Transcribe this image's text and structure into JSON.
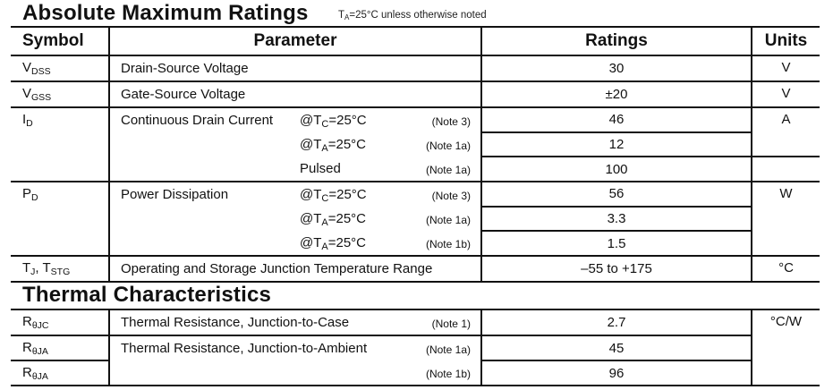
{
  "absolute_maximum_ratings": {
    "title": "Absolute Maximum Ratings",
    "condition": {
      "t": "T",
      "sub": "A",
      "rest": "=25°C unless otherwise noted"
    },
    "headers": {
      "symbol": "Symbol",
      "parameter": "Parameter",
      "ratings": "Ratings",
      "units": "Units"
    },
    "symbols": [
      {
        "parts": [
          {
            "t": "V"
          },
          {
            "sub": "DSS"
          }
        ],
        "rows": 1
      },
      {
        "parts": [
          {
            "t": "V"
          },
          {
            "sub": "GSS"
          }
        ],
        "rows": 1
      },
      {
        "parts": [
          {
            "t": "I"
          },
          {
            "sub": "D"
          }
        ],
        "rows": 3
      },
      {
        "parts": [
          {
            "t": "P"
          },
          {
            "sub": "D"
          }
        ],
        "rows": 3
      },
      {
        "parts": [
          {
            "t": "T"
          },
          {
            "sub": "J"
          },
          {
            "t": ", T"
          },
          {
            "sub": "STG"
          }
        ],
        "rows": 1
      }
    ],
    "parameters": [
      {
        "name": "Drain-Source Voltage",
        "lines": [
          {}
        ]
      },
      {
        "name": "Gate-Source Voltage",
        "lines": [
          {}
        ]
      },
      {
        "name": "Continuous Drain Current",
        "lines": [
          {
            "cond": [
              {
                "t": "@T"
              },
              {
                "sub": "C"
              },
              {
                "t": "=25°C"
              }
            ],
            "note": "(Note 3)"
          },
          {
            "cond": [
              {
                "t": "@T"
              },
              {
                "sub": "A"
              },
              {
                "t": "=25°C"
              }
            ],
            "note": "(Note 1a)"
          },
          {
            "cond": [
              {
                "t": "Pulsed"
              }
            ],
            "note": "(Note 1a)"
          }
        ]
      },
      {
        "name": "Power Dissipation",
        "lines": [
          {
            "cond": [
              {
                "t": "@T"
              },
              {
                "sub": "C"
              },
              {
                "t": "=25°C"
              }
            ],
            "note": "(Note 3)"
          },
          {
            "cond": [
              {
                "t": "@T"
              },
              {
                "sub": "A"
              },
              {
                "t": "=25°C"
              }
            ],
            "note": "(Note 1a)"
          },
          {
            "cond": [
              {
                "t": "@T"
              },
              {
                "sub": "A"
              },
              {
                "t": "=25°C"
              }
            ],
            "note": "(Note 1b)"
          }
        ]
      },
      {
        "name": "Operating and Storage Junction Temperature Range",
        "lines": [
          {}
        ]
      }
    ],
    "ratings": [
      "30",
      "±20",
      "46",
      "12",
      "100",
      "56",
      "3.3",
      "1.5",
      "–55 to +175"
    ],
    "units": [
      {
        "label": "V",
        "rows": 1
      },
      {
        "label": "V",
        "rows": 1
      },
      {
        "label": "A",
        "rows": 2
      },
      {
        "label": "",
        "rows": 1
      },
      {
        "label": "W",
        "rows": 3
      },
      {
        "label": "°C",
        "rows": 1
      }
    ]
  },
  "thermal_characteristics": {
    "title": "Thermal Characteristics",
    "symbols": [
      {
        "parts": [
          {
            "t": "R"
          },
          {
            "sub": "θJC"
          }
        ],
        "rows": 1
      },
      {
        "parts": [
          {
            "t": "R"
          },
          {
            "sub": "θJA"
          }
        ],
        "rows": 1
      },
      {
        "parts": [
          {
            "t": "R"
          },
          {
            "sub": "θJA"
          }
        ],
        "rows": 1
      }
    ],
    "parameters": [
      {
        "name": "Thermal Resistance, Junction-to-Case",
        "lines": [
          {
            "note": "(Note 1)"
          }
        ]
      },
      {
        "name": "Thermal Resistance, Junction-to-Ambient",
        "lines": [
          {
            "note": "(Note 1a)"
          },
          {
            "note": "(Note 1b)"
          }
        ]
      }
    ],
    "ratings": [
      "2.7",
      "45",
      "96"
    ],
    "units": [
      {
        "label": "°C/W",
        "rows": 3
      }
    ]
  }
}
